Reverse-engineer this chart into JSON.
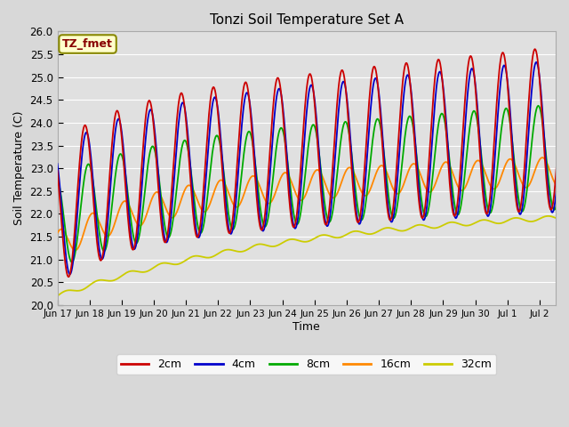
{
  "title": "Tonzi Soil Temperature Set A",
  "xlabel": "Time",
  "ylabel": "Soil Temperature (C)",
  "ylim": [
    20.0,
    26.0
  ],
  "yticks": [
    20.0,
    20.5,
    21.0,
    21.5,
    22.0,
    22.5,
    23.0,
    23.5,
    24.0,
    24.5,
    25.0,
    25.5,
    26.0
  ],
  "xtick_labels": [
    "Jun 17",
    "Jun 18",
    "Jun 19",
    "Jun 20",
    "Jun 21",
    "Jun 22",
    "Jun 23",
    "Jun 24",
    "Jun 25",
    "Jun 26",
    "Jun 27",
    "Jun 28",
    "Jun 29",
    "Jun 30",
    "Jul 1",
    "Jul 2"
  ],
  "colors": {
    "2cm": "#cc0000",
    "4cm": "#0000cc",
    "8cm": "#00aa00",
    "16cm": "#ff8800",
    "32cm": "#cccc00"
  },
  "annotation_text": "TZ_fmet",
  "annotation_color": "#880000",
  "annotation_bg": "#ffffcc",
  "fig_bg": "#d8d8d8",
  "plot_bg": "#e0e0e0"
}
